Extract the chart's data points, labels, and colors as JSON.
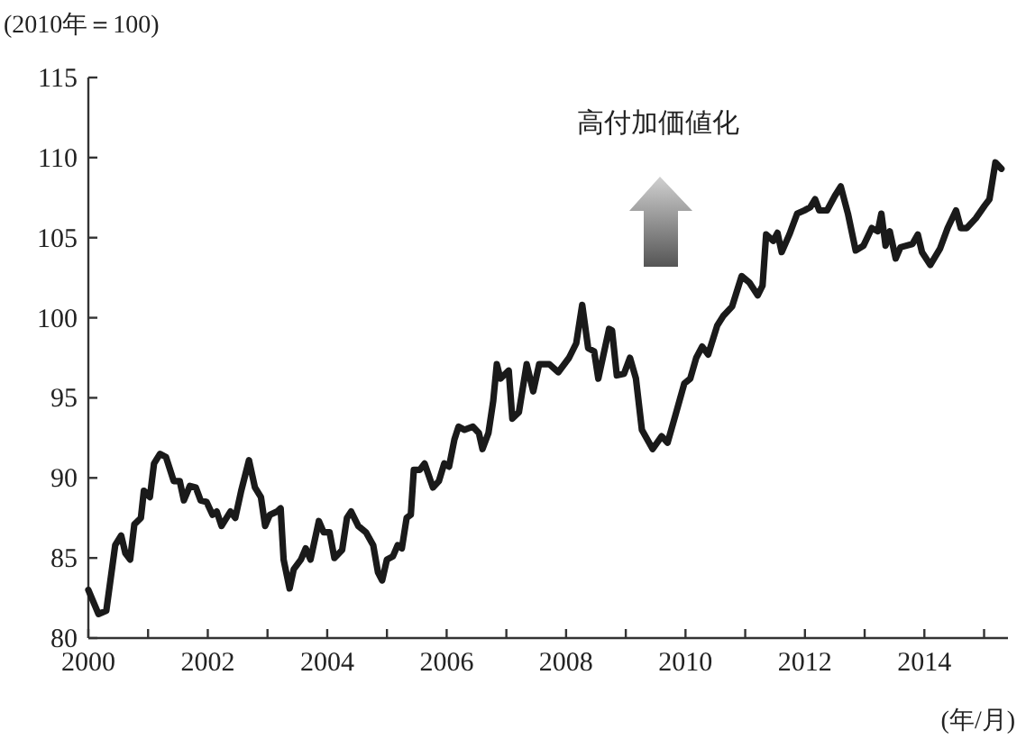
{
  "chart_data": {
    "type": "line",
    "ylabel": "(2010年＝100)",
    "xlabel": "(年/月)",
    "annotations": [
      "高付加価値化"
    ],
    "xlim": [
      2000,
      2015.4
    ],
    "ylim": [
      80,
      115
    ],
    "xticks": [
      2000,
      {
        "value": 2001,
        "label": null
      },
      2002,
      {
        "value": 2003,
        "label": null
      },
      2004,
      {
        "value": 2005,
        "label": null
      },
      2006,
      {
        "value": 2007,
        "label": null
      },
      2008,
      {
        "value": 2009,
        "label": null
      },
      2010,
      {
        "value": 2011,
        "label": null
      },
      2012,
      {
        "value": 2013,
        "label": null
      },
      2014,
      {
        "value": 2015,
        "label": null
      }
    ],
    "yticks": [
      80,
      85,
      90,
      95,
      100,
      105,
      110,
      115
    ],
    "grid": false,
    "series": [
      {
        "color": "#1a1a1a",
        "x": [
          2000.0,
          2000.17,
          2000.3,
          2000.45,
          2000.55,
          2000.62,
          2000.7,
          2000.77,
          2000.88,
          2000.93,
          2001.03,
          2001.1,
          2001.2,
          2001.3,
          2001.43,
          2001.53,
          2001.6,
          2001.7,
          2001.8,
          2001.88,
          2001.98,
          2002.08,
          2002.15,
          2002.23,
          2002.38,
          2002.46,
          2002.56,
          2002.69,
          2002.79,
          2002.89,
          2002.96,
          2003.04,
          2003.16,
          2003.22,
          2003.27,
          2003.37,
          2003.44,
          2003.56,
          2003.64,
          2003.72,
          2003.86,
          2003.94,
          2004.04,
          2004.12,
          2004.25,
          2004.33,
          2004.4,
          2004.52,
          2004.65,
          2004.77,
          2004.85,
          2004.92,
          2005.0,
          2005.1,
          2005.18,
          2005.25,
          2005.33,
          2005.4,
          2005.45,
          2005.55,
          2005.63,
          2005.77,
          2005.87,
          2005.96,
          2006.04,
          2006.13,
          2006.2,
          2006.3,
          2006.44,
          2006.54,
          2006.6,
          2006.7,
          2006.78,
          2006.84,
          2006.9,
          2007.04,
          2007.1,
          2007.21,
          2007.34,
          2007.45,
          2007.55,
          2007.72,
          2007.87,
          2008.05,
          2008.17,
          2008.27,
          2008.37,
          2008.47,
          2008.54,
          2008.72,
          2008.77,
          2008.85,
          2008.97,
          2009.07,
          2009.17,
          2009.27,
          2009.45,
          2009.6,
          2009.7,
          2009.83,
          2009.98,
          2010.08,
          2010.18,
          2010.28,
          2010.38,
          2010.53,
          2010.63,
          2010.78,
          2010.94,
          2011.07,
          2011.21,
          2011.29,
          2011.35,
          2011.47,
          2011.54,
          2011.61,
          2011.74,
          2011.87,
          2011.99,
          2012.09,
          2012.17,
          2012.24,
          2012.37,
          2012.5,
          2012.6,
          2012.72,
          2012.85,
          2012.98,
          2013.12,
          2013.22,
          2013.28,
          2013.35,
          2013.42,
          2013.52,
          2013.6,
          2013.8,
          2013.89,
          2013.96,
          2014.1,
          2014.26,
          2014.39,
          2014.53,
          2014.61,
          2014.71,
          2014.86,
          2015.01,
          2015.09,
          2015.19,
          2015.29
        ],
        "values": [
          83.0,
          81.5,
          81.7,
          85.8,
          86.4,
          85.3,
          84.9,
          87.1,
          87.5,
          89.2,
          88.8,
          90.9,
          91.5,
          91.3,
          89.8,
          89.8,
          88.6,
          89.5,
          89.4,
          88.6,
          88.5,
          87.7,
          87.9,
          87.0,
          87.9,
          87.5,
          89.2,
          91.1,
          89.4,
          88.8,
          87.0,
          87.7,
          87.9,
          88.1,
          84.9,
          83.1,
          84.3,
          84.9,
          85.6,
          84.9,
          87.3,
          86.6,
          86.6,
          85.0,
          85.5,
          87.5,
          87.9,
          87.0,
          86.6,
          85.8,
          84.1,
          83.6,
          84.9,
          85.1,
          85.8,
          85.6,
          87.5,
          87.7,
          90.5,
          90.5,
          90.9,
          89.4,
          89.8,
          90.9,
          90.7,
          92.4,
          93.2,
          93.0,
          93.2,
          92.8,
          91.8,
          92.8,
          94.8,
          97.1,
          96.2,
          96.7,
          93.7,
          94.1,
          97.1,
          95.4,
          97.1,
          97.1,
          96.6,
          97.5,
          98.4,
          100.8,
          98.1,
          97.9,
          96.2,
          99.3,
          99.2,
          96.4,
          96.5,
          97.5,
          96.2,
          93.0,
          91.8,
          92.6,
          92.2,
          93.9,
          95.9,
          96.2,
          97.5,
          98.2,
          97.7,
          99.5,
          100.1,
          100.7,
          102.6,
          102.2,
          101.4,
          102.0,
          105.2,
          104.8,
          105.3,
          104.1,
          105.2,
          106.5,
          106.7,
          106.9,
          107.4,
          106.7,
          106.7,
          107.6,
          108.2,
          106.5,
          104.2,
          104.5,
          105.6,
          105.4,
          106.5,
          104.5,
          105.4,
          103.7,
          104.4,
          104.6,
          105.2,
          104.1,
          103.3,
          104.3,
          105.6,
          106.7,
          105.6,
          105.6,
          106.2,
          107.0,
          107.4,
          109.7,
          109.3
        ]
      }
    ]
  }
}
